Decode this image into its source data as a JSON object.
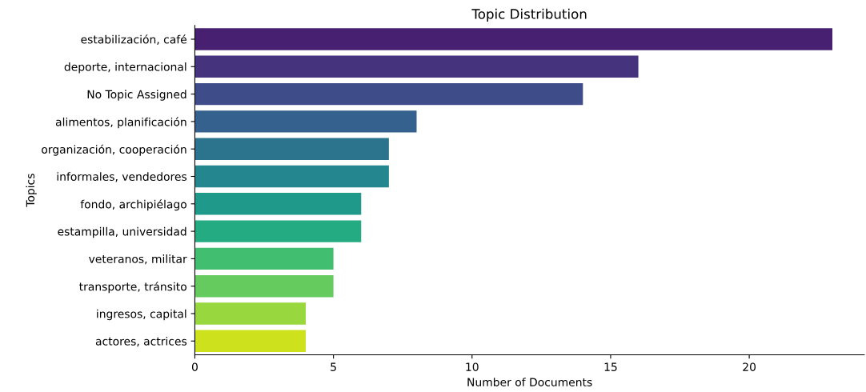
{
  "chart_data": {
    "type": "bar",
    "orientation": "horizontal",
    "title": "Topic Distribution",
    "xlabel": "Number of Documents",
    "ylabel": "Topics",
    "categories": [
      "estabilización, café",
      "deporte, internacional",
      "No Topic Assigned",
      "alimentos, planificación",
      "organización, cooperación",
      "informales, vendedores",
      "fondo, archipiélago",
      "estampilla, universidad",
      "veteranos, militar",
      "transporte, tránsito",
      "ingresos, capital",
      "actores, actrices"
    ],
    "values": [
      23,
      16,
      14,
      8,
      7,
      7,
      6,
      6,
      5,
      5,
      4,
      4
    ],
    "colors": [
      "#482071",
      "#46337e",
      "#3e4c8a",
      "#34618d",
      "#2c738e",
      "#24868e",
      "#1f998a",
      "#25ab82",
      "#42be71",
      "#65cb5e",
      "#98d83e",
      "#cde11d"
    ],
    "xlim": [
      0,
      24.15
    ],
    "xticks": [
      0,
      5,
      10,
      15,
      20
    ],
    "grid": false,
    "legend": false
  }
}
